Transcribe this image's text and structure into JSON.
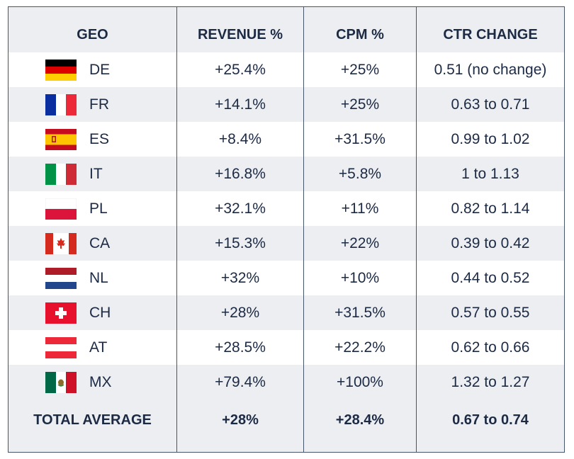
{
  "headers": {
    "geo": "GEO",
    "revenue": "REVENUE %",
    "cpm": "CPM %",
    "ctr": "CTR CHANGE"
  },
  "rows": [
    {
      "flag": "germany-flag",
      "geo": "DE",
      "revenue": "+25.4%",
      "cpm": "+25%",
      "ctr": "0.51 (no change)"
    },
    {
      "flag": "france-flag",
      "geo": "FR",
      "revenue": "+14.1%",
      "cpm": "+25%",
      "ctr": "0.63 to 0.71"
    },
    {
      "flag": "spain-flag",
      "geo": "ES",
      "revenue": "+8.4%",
      "cpm": "+31.5%",
      "ctr": "0.99 to 1.02"
    },
    {
      "flag": "italy-flag",
      "geo": "IT",
      "revenue": "+16.8%",
      "cpm": "+5.8%",
      "ctr": "1 to 1.13"
    },
    {
      "flag": "poland-flag",
      "geo": "PL",
      "revenue": "+32.1%",
      "cpm": "+11%",
      "ctr": "0.82 to 1.14"
    },
    {
      "flag": "canada-flag",
      "geo": "CA",
      "revenue": "+15.3%",
      "cpm": "+22%",
      "ctr": "0.39 to 0.42"
    },
    {
      "flag": "netherlands-flag",
      "geo": "NL",
      "revenue": "+32%",
      "cpm": "+10%",
      "ctr": "0.44 to 0.52"
    },
    {
      "flag": "switzerland-flag",
      "geo": "CH",
      "revenue": "+28%",
      "cpm": "+31.5%",
      "ctr": "0.57 to 0.55"
    },
    {
      "flag": "austria-flag",
      "geo": "AT",
      "revenue": "+28.5%",
      "cpm": "+22.2%",
      "ctr": "0.62 to 0.66"
    },
    {
      "flag": "mexico-flag",
      "geo": "MX",
      "revenue": "+79.4%",
      "cpm": "+100%",
      "ctr": "1.32 to 1.27"
    }
  ],
  "total": {
    "label": "TOTAL AVERAGE",
    "revenue": "+28%",
    "cpm": "+28.4%",
    "ctr": "0.67 to 0.74"
  },
  "colors": {
    "text": "#1c2a44",
    "border": "#46556a",
    "stripe": "#eceef1"
  }
}
